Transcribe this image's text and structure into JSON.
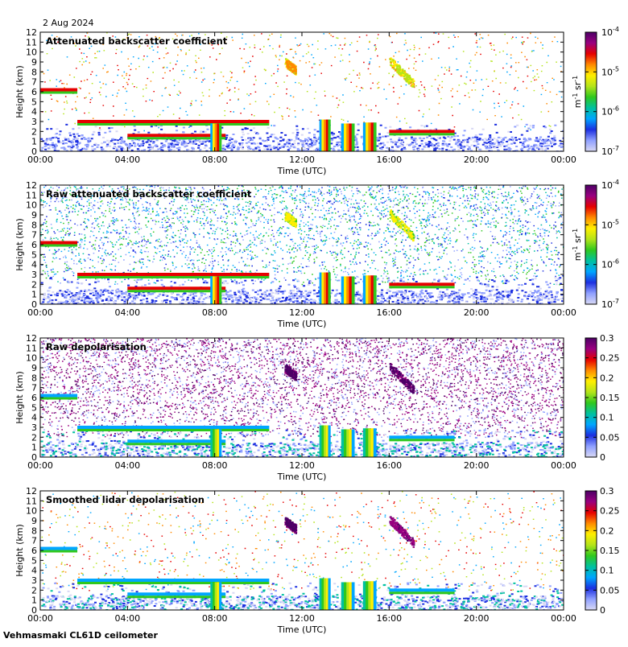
{
  "figure": {
    "date": "2 Aug 2024",
    "instrument": "Vehmasmaki CL61D ceilometer"
  },
  "colors": {
    "background": "#ffffff",
    "axis": "#000000",
    "colormap": [
      "#d8d8f4",
      "#8fa0ff",
      "#1c2fe0",
      "#00a6ff",
      "#00c1a0",
      "#2fc81e",
      "#b4e41a",
      "#ffef00",
      "#ff8a00",
      "#e60000",
      "#990080",
      "#4d0066"
    ]
  },
  "chart_data": [
    {
      "type": "heatmap",
      "title": "Attenuated backscatter coefficient",
      "xlabel": "Time (UTC)",
      "ylabel": "Height (km)",
      "x_ticks": [
        "00:00",
        "04:00",
        "08:00",
        "12:00",
        "16:00",
        "20:00",
        "00:00"
      ],
      "x_range_hours": [
        0,
        24
      ],
      "y_ticks": [
        "0",
        "1",
        "2",
        "3",
        "4",
        "5",
        "6",
        "7",
        "8",
        "9",
        "10",
        "11",
        "12"
      ],
      "ylim": [
        0,
        12
      ],
      "colorbar": {
        "scale": "log",
        "range": [
          1e-07,
          0.0001
        ],
        "tick_values": [
          1e-07,
          1e-06,
          1e-05,
          0.0001
        ],
        "tick_bases": [
          "10",
          "10",
          "10",
          "10"
        ],
        "tick_exponents": [
          "-7",
          "-6",
          "-5",
          "-4"
        ],
        "unit_parts": [
          "m",
          "-1",
          " sr",
          "-1"
        ]
      },
      "features": {
        "boundary_layer_top_km": 1.5,
        "cloud_layers": [
          {
            "start_h": 0.0,
            "end_h": 1.7,
            "height_km": 6.2
          },
          {
            "start_h": 1.7,
            "end_h": 10.5,
            "height_km": 3.0
          },
          {
            "start_h": 4.0,
            "end_h": 8.5,
            "height_km": 1.6
          },
          {
            "start_h": 16.0,
            "end_h": 19.0,
            "height_km": 2.0
          }
        ],
        "precipitation_shafts": [
          {
            "start_h": 7.8,
            "end_h": 8.3,
            "top_km": 2.8
          },
          {
            "start_h": 12.8,
            "end_h": 13.3,
            "top_km": 3.2
          },
          {
            "start_h": 13.8,
            "end_h": 14.4,
            "top_km": 2.8
          },
          {
            "start_h": 14.8,
            "end_h": 15.4,
            "top_km": 2.9
          }
        ],
        "high_cloud_streaks": [
          {
            "start_h": 16.0,
            "end_h": 17.1,
            "top_km": 9.2,
            "bottom_km": 6.8
          },
          {
            "start_h": 11.2,
            "end_h": 11.7,
            "top_km": 9.0,
            "bottom_km": 8.2
          }
        ]
      }
    },
    {
      "type": "heatmap",
      "title": "Raw attenuated backscatter coefficient",
      "xlabel": "Time (UTC)",
      "ylabel": "Height (km)",
      "x_ticks": [
        "00:00",
        "04:00",
        "08:00",
        "12:00",
        "16:00",
        "20:00",
        "00:00"
      ],
      "x_range_hours": [
        0,
        24
      ],
      "y_ticks": [
        "0",
        "1",
        "2",
        "3",
        "4",
        "5",
        "6",
        "7",
        "8",
        "9",
        "10",
        "11",
        "12"
      ],
      "ylim": [
        0,
        12
      ],
      "colorbar": {
        "scale": "log",
        "range": [
          1e-07,
          0.0001
        ],
        "tick_values": [
          1e-07,
          1e-06,
          1e-05,
          0.0001
        ],
        "tick_bases": [
          "10",
          "10",
          "10",
          "10"
        ],
        "tick_exponents": [
          "-7",
          "-6",
          "-5",
          "-4"
        ],
        "unit_parts": [
          "m",
          "-1",
          " sr",
          "-1"
        ]
      }
    },
    {
      "type": "heatmap",
      "title": "Raw depolarisation",
      "xlabel": "Time (UTC)",
      "ylabel": "Height (km)",
      "x_ticks": [
        "00:00",
        "04:00",
        "08:00",
        "12:00",
        "16:00",
        "20:00",
        "00:00"
      ],
      "x_range_hours": [
        0,
        24
      ],
      "y_ticks": [
        "0",
        "1",
        "2",
        "3",
        "4",
        "5",
        "6",
        "7",
        "8",
        "9",
        "10",
        "11",
        "12"
      ],
      "ylim": [
        0,
        12
      ],
      "colorbar": {
        "scale": "linear",
        "range": [
          0,
          0.3
        ],
        "tick_values": [
          0,
          0.05,
          0.1,
          0.15,
          0.2,
          0.25,
          0.3
        ],
        "tick_labels": [
          "0",
          "0.05",
          "0.1",
          "0.15",
          "0.2",
          "0.25",
          "0.3"
        ]
      }
    },
    {
      "type": "heatmap",
      "title": "Smoothed lidar depolarisation",
      "xlabel": "Time (UTC)",
      "ylabel": "Height (km)",
      "x_ticks": [
        "00:00",
        "04:00",
        "08:00",
        "12:00",
        "16:00",
        "20:00",
        "00:00"
      ],
      "x_range_hours": [
        0,
        24
      ],
      "y_ticks": [
        "0",
        "1",
        "2",
        "3",
        "4",
        "5",
        "6",
        "7",
        "8",
        "9",
        "10",
        "11",
        "12"
      ],
      "ylim": [
        0,
        12
      ],
      "colorbar": {
        "scale": "linear",
        "range": [
          0,
          0.3
        ],
        "tick_values": [
          0,
          0.05,
          0.1,
          0.15,
          0.2,
          0.25,
          0.3
        ],
        "tick_labels": [
          "0",
          "0.05",
          "0.1",
          "0.15",
          "0.2",
          "0.25",
          "0.3"
        ]
      }
    }
  ]
}
